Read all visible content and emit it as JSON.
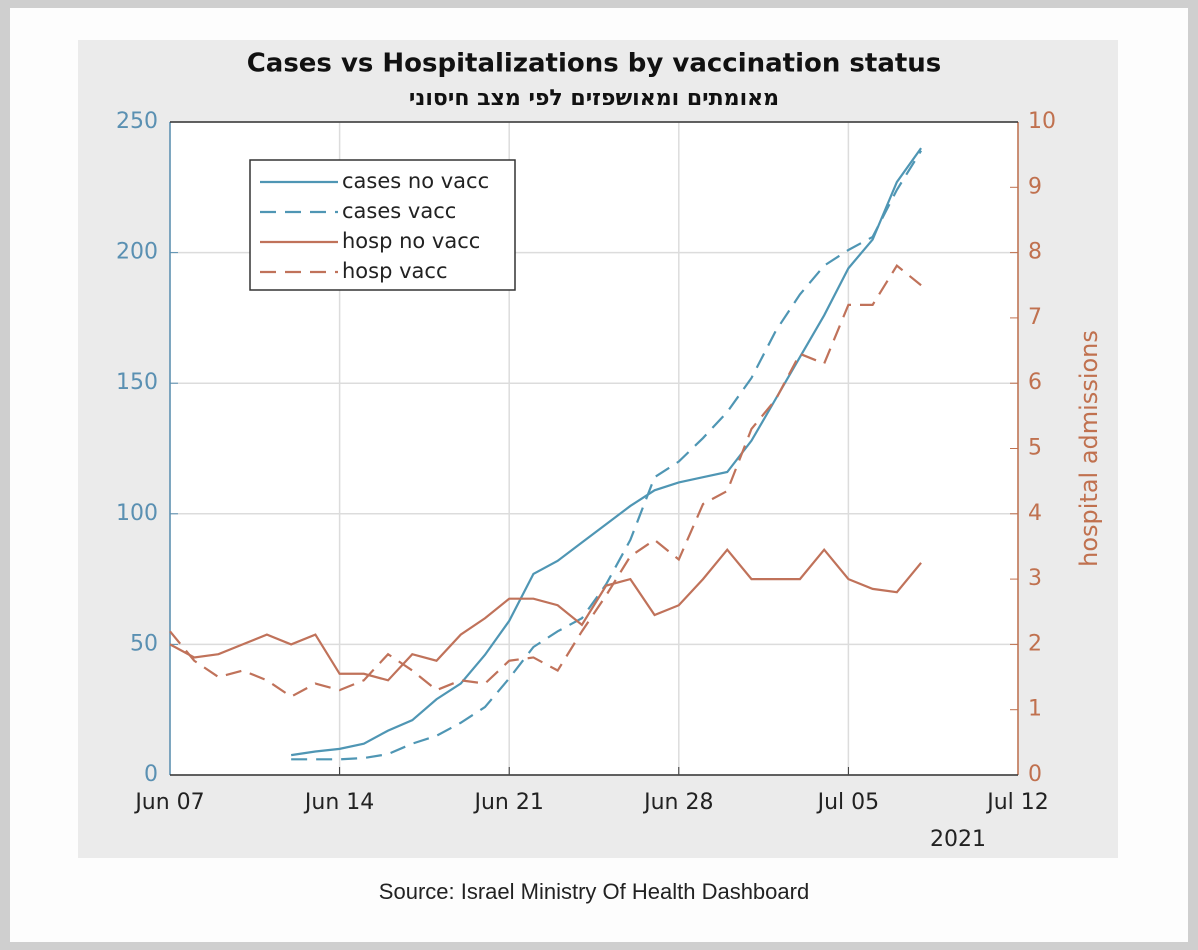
{
  "chart_data": {
    "type": "line",
    "title": "Cases vs Hospitalizations by vaccination status",
    "subtitle": "מאומתים ומאושפזים לפי מצב חיסוני",
    "y2label": "hospital admissions",
    "x_year_label": "2021",
    "source": "Source: Israel Ministry Of Health Dashboard",
    "xlim": [
      "2021-06-07",
      "2021-07-12"
    ],
    "xticks": [
      {
        "value": "2021-06-07",
        "label": "Jun 07"
      },
      {
        "value": "2021-06-14",
        "label": "Jun 14"
      },
      {
        "value": "2021-06-21",
        "label": "Jun 21"
      },
      {
        "value": "2021-06-28",
        "label": "Jun 28"
      },
      {
        "value": "2021-07-05",
        "label": "Jul 05"
      },
      {
        "value": "2021-07-12",
        "label": "Jul 12"
      }
    ],
    "ylim": [
      0,
      250
    ],
    "yticks": [
      0,
      50,
      100,
      150,
      200,
      250
    ],
    "y2lim": [
      0,
      10
    ],
    "y2ticks": [
      0,
      1,
      2,
      3,
      4,
      5,
      6,
      7,
      8,
      9,
      10
    ],
    "grid": true,
    "legend": "upper left",
    "series": [
      {
        "name": "cases no vacc",
        "color": "#4f96b4",
        "dash": "solid",
        "x": [
          "2021-06-12",
          "2021-06-13",
          "2021-06-14",
          "2021-06-15",
          "2021-06-16",
          "2021-06-17",
          "2021-06-18",
          "2021-06-19",
          "2021-06-20",
          "2021-06-21",
          "2021-06-22",
          "2021-06-23",
          "2021-06-24",
          "2021-06-25",
          "2021-06-26",
          "2021-06-27",
          "2021-06-28",
          "2021-06-29",
          "2021-06-30",
          "2021-07-01",
          "2021-07-02",
          "2021-07-03",
          "2021-07-04",
          "2021-07-05",
          "2021-07-06",
          "2021-07-07",
          "2021-07-08"
        ],
        "values": [
          7.6,
          9,
          10,
          12,
          17,
          21,
          29,
          35,
          46,
          59,
          77,
          82,
          89,
          96,
          103,
          109,
          112,
          114,
          116,
          128,
          144,
          160,
          176,
          194,
          205,
          227,
          240
        ]
      },
      {
        "name": "cases vacc",
        "color": "#4f96b4",
        "dash": "dashed",
        "x": [
          "2021-06-12",
          "2021-06-13",
          "2021-06-14",
          "2021-06-15",
          "2021-06-16",
          "2021-06-17",
          "2021-06-18",
          "2021-06-19",
          "2021-06-20",
          "2021-06-21",
          "2021-06-22",
          "2021-06-23",
          "2021-06-24",
          "2021-06-25",
          "2021-06-26",
          "2021-06-27",
          "2021-06-28",
          "2021-06-29",
          "2021-06-30",
          "2021-07-01",
          "2021-07-02",
          "2021-07-03",
          "2021-07-04",
          "2021-07-05",
          "2021-07-06",
          "2021-07-07",
          "2021-07-08"
        ],
        "values": [
          6,
          6,
          6,
          6.5,
          8,
          12,
          15,
          20,
          26,
          37,
          49,
          55,
          60,
          73,
          90,
          114,
          120,
          129,
          139,
          152,
          170,
          184,
          195,
          201,
          206,
          224,
          239
        ]
      },
      {
        "name": "hosp no vacc",
        "color": "#c0725a",
        "dash": "solid",
        "axis": "y2",
        "x": [
          "2021-06-07",
          "2021-06-08",
          "2021-06-09",
          "2021-06-10",
          "2021-06-11",
          "2021-06-12",
          "2021-06-13",
          "2021-06-14",
          "2021-06-15",
          "2021-06-16",
          "2021-06-17",
          "2021-06-18",
          "2021-06-19",
          "2021-06-20",
          "2021-06-21",
          "2021-06-22",
          "2021-06-23",
          "2021-06-24",
          "2021-06-25",
          "2021-06-26",
          "2021-06-27",
          "2021-06-28",
          "2021-06-29",
          "2021-06-30",
          "2021-07-01",
          "2021-07-02",
          "2021-07-03",
          "2021-07-04",
          "2021-07-05",
          "2021-07-06",
          "2021-07-07",
          "2021-07-08"
        ],
        "values": [
          2.0,
          1.8,
          1.85,
          2.0,
          2.15,
          2.0,
          2.15,
          1.55,
          1.55,
          1.45,
          1.85,
          1.75,
          2.15,
          2.4,
          2.7,
          2.7,
          2.6,
          2.3,
          2.9,
          3.0,
          2.45,
          2.6,
          3.0,
          3.45,
          3.0,
          3.0,
          3.0,
          3.45,
          3.0,
          2.85,
          2.8,
          3.25
        ]
      },
      {
        "name": "hosp vacc",
        "color": "#c0725a",
        "dash": "dashed",
        "axis": "y2",
        "x": [
          "2021-06-07",
          "2021-06-08",
          "2021-06-09",
          "2021-06-10",
          "2021-06-11",
          "2021-06-12",
          "2021-06-13",
          "2021-06-14",
          "2021-06-15",
          "2021-06-16",
          "2021-06-17",
          "2021-06-18",
          "2021-06-19",
          "2021-06-20",
          "2021-06-21",
          "2021-06-22",
          "2021-06-23",
          "2021-06-24",
          "2021-06-25",
          "2021-06-26",
          "2021-06-27",
          "2021-06-28",
          "2021-06-29",
          "2021-06-30",
          "2021-07-01",
          "2021-07-02",
          "2021-07-03",
          "2021-07-04",
          "2021-07-05",
          "2021-07-06",
          "2021-07-07",
          "2021-07-08"
        ],
        "values": [
          2.2,
          1.75,
          1.5,
          1.6,
          1.45,
          1.2,
          1.4,
          1.3,
          1.45,
          1.85,
          1.6,
          1.3,
          1.45,
          1.4,
          1.75,
          1.8,
          1.6,
          2.2,
          2.75,
          3.35,
          3.6,
          3.3,
          4.15,
          4.35,
          5.3,
          5.75,
          6.45,
          6.3,
          7.2,
          7.2,
          7.8,
          7.5
        ]
      }
    ],
    "y_color": "#5a90b2",
    "y2_color": "#c0714f"
  }
}
